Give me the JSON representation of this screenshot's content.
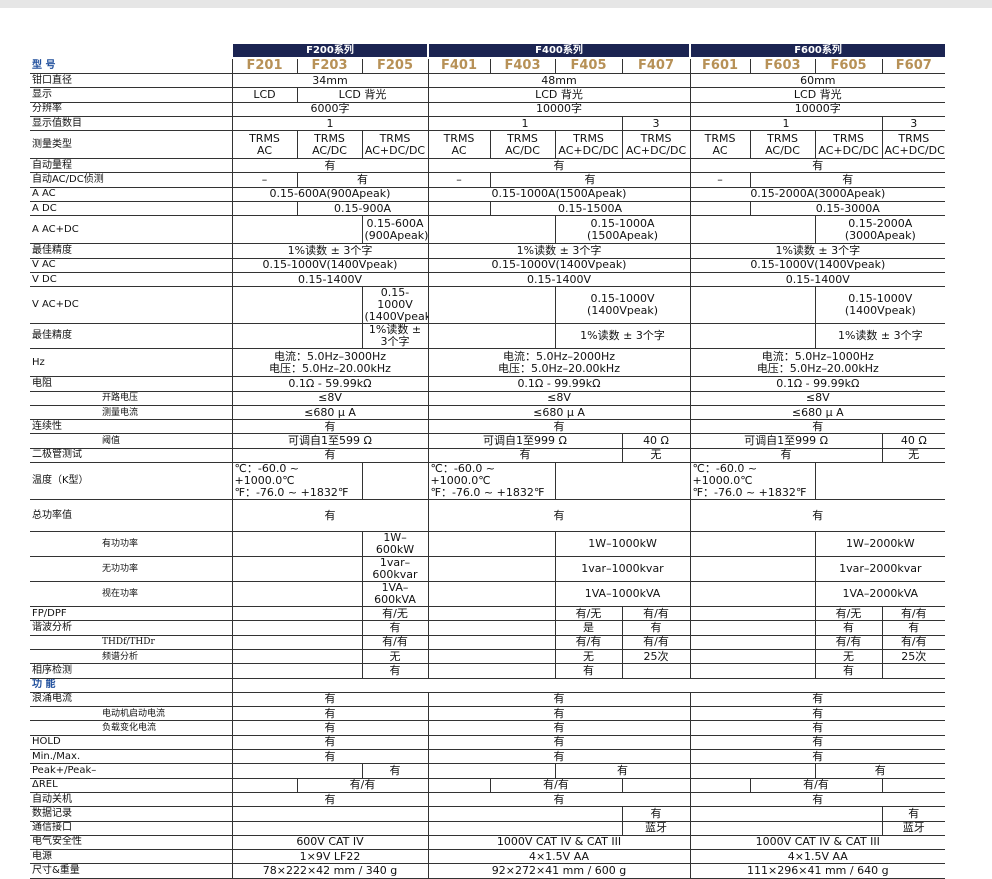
{
  "header": {
    "series": [
      "F200系列",
      "F400系列",
      "F600系列"
    ],
    "model_label": "型 号",
    "models": [
      "F201",
      "F203",
      "F205",
      "F401",
      "F403",
      "F405",
      "F407",
      "F601",
      "F603",
      "F605",
      "F607"
    ]
  },
  "rows": [
    {
      "label": "钳口直径",
      "cells": [
        "34mm",
        "48mm",
        "60mm"
      ]
    },
    {
      "label": "显示",
      "cells": [
        "LCD",
        "LCD 背光",
        "LCD 背光",
        "LCD 背光"
      ]
    },
    {
      "label": "分辨率",
      "cells": [
        "6000字",
        "10000字",
        "10000字"
      ]
    },
    {
      "label": "显示值数目",
      "cells": [
        "1",
        "1",
        "3",
        "1",
        "3"
      ]
    },
    {
      "label": "测量类型",
      "cells": [
        "TRMS\nAC",
        "TRMS\nAC/DC",
        "TRMS\nAC+DC/DC",
        "TRMS\nAC",
        "TRMS\nAC/DC",
        "TRMS\nAC+DC/DC",
        "TRMS\nAC+DC/DC",
        "TRMS\nAC",
        "TRMS\nAC/DC",
        "TRMS\nAC+DC/DC",
        "TRMS\nAC+DC/DC"
      ]
    },
    {
      "label": "自动量程",
      "cells": [
        "有",
        "有",
        "有"
      ]
    },
    {
      "label": "自动AC/DC侦测",
      "cells": [
        "–",
        "有",
        "–",
        "有",
        "–",
        "有"
      ]
    },
    {
      "label": "A AC",
      "cells": [
        "0.15-600A(900Apeak)",
        "0.15-1000A(1500Apeak)",
        "0.15-2000A(3000Apeak)"
      ]
    },
    {
      "label": "A DC",
      "cells": [
        "0.15-900A",
        "0.15-1500A",
        "0.15-3000A"
      ]
    },
    {
      "label": "A AC+DC",
      "cells": [
        "0.15-600A\n(900Apeak)",
        "0.15-1000A\n(1500Apeak)",
        "0.15-2000A\n(3000Apeak)"
      ]
    },
    {
      "label": "最佳精度",
      "cells": [
        "1%读数 ± 3个字",
        "1%读数 ± 3个字",
        "1%读数 ± 3个字"
      ]
    },
    {
      "label": "V AC",
      "cells": [
        "0.15-1000V(1400Vpeak)",
        "0.15-1000V(1400Vpeak)",
        "0.15-1000V(1400Vpeak)"
      ]
    },
    {
      "label": "V DC",
      "cells": [
        "0.15-1400V",
        "0.15-1400V",
        "0.15-1400V"
      ]
    },
    {
      "label": "V AC+DC",
      "cells": [
        "0.15-1000V\n(1400Vpeak)",
        "0.15-1000V\n(1400Vpeak)",
        "0.15-1000V\n(1400Vpeak)"
      ]
    },
    {
      "label": "最佳精度",
      "cells": [
        "1%读数 ± 3个字",
        "1%读数 ± 3个字",
        "1%读数 ± 3个字"
      ]
    },
    {
      "label": "Hz",
      "cells": [
        "电流：5.0Hz–3000Hz\n电压：5.0Hz–20.00kHz",
        "电流：5.0Hz–2000Hz\n电压：5.0Hz–20.00kHz",
        "电流：5.0Hz–1000Hz\n电压：5.0Hz–20.00kHz"
      ]
    },
    {
      "label": "电阻",
      "cells": [
        "0.1Ω - 59.99kΩ",
        "0.1Ω - 99.99kΩ",
        "0.1Ω - 99.99kΩ"
      ]
    },
    {
      "label": "开路电压",
      "cells": [
        "≤8V",
        "≤8V",
        "≤8V"
      ]
    },
    {
      "label": "测量电流",
      "cells": [
        "≤680 μ A",
        "≤680 μ A",
        "≤680 μ A"
      ]
    },
    {
      "label": "连续性",
      "cells": [
        "有",
        "有",
        "有"
      ]
    },
    {
      "label": "阈值",
      "cells": [
        "可调自1至599 Ω",
        "可调自1至999 Ω",
        "40 Ω",
        "可调自1至999 Ω",
        "40 Ω"
      ]
    },
    {
      "label": "二极管测试",
      "cells": [
        "有",
        "有",
        "无",
        "有",
        "无"
      ]
    },
    {
      "label": "温度（K型）",
      "cells": [
        "℃：-60.0 ~ +1000.0℃\n℉：-76.0 ~ +1832℉",
        "℃：-60.0 ~ +1000.0℃\n℉：-76.0 ~ +1832℉",
        "℃：-60.0 ~ +1000.0℃\n℉：-76.0 ~ +1832℉"
      ]
    },
    {
      "label": "总功率值",
      "cells": [
        "有",
        "有",
        "有"
      ]
    },
    {
      "label": "有功功率",
      "cells": [
        "1W–600kW",
        "1W–1000kW",
        "1W–2000kW"
      ]
    },
    {
      "label": "无功功率",
      "cells": [
        "1var–600kvar",
        "1var–1000kvar",
        "1var–2000kvar"
      ]
    },
    {
      "label": "视在功率",
      "cells": [
        "1VA–600kVA",
        "1VA–1000kVA",
        "1VA–2000kVA"
      ]
    },
    {
      "label": "FP/DPF",
      "cells": [
        "有/无",
        "有/无",
        "有/有",
        "有/无",
        "有/有"
      ]
    },
    {
      "label": "谐波分析",
      "cells": [
        "有",
        "是",
        "有",
        "有",
        "有"
      ]
    },
    {
      "label": "THDf/THDr",
      "cells": [
        "有/有",
        "有/有",
        "有/有",
        "有/有",
        "有/有"
      ]
    },
    {
      "label": "频谱分析",
      "cells": [
        "无",
        "无",
        "25次",
        "无",
        "25次"
      ]
    },
    {
      "label": "相序检测",
      "cells": [
        "有",
        "有",
        "有"
      ]
    },
    {
      "label": "功 能",
      "cells": []
    },
    {
      "label": "浪涌电流",
      "cells": [
        "有",
        "有",
        "有"
      ]
    },
    {
      "label": "电动机启动电流",
      "cells": [
        "有",
        "有",
        "有"
      ]
    },
    {
      "label": "负载变化电流",
      "cells": [
        "有",
        "有",
        "有"
      ]
    },
    {
      "label": "HOLD",
      "cells": [
        "有",
        "有",
        "有"
      ]
    },
    {
      "label": "Min./Max.",
      "cells": [
        "有",
        "有",
        "有"
      ]
    },
    {
      "label": "Peak+/Peak–",
      "cells": [
        "有",
        "有",
        "有"
      ]
    },
    {
      "label": "ΔREL",
      "cells": [
        "有/有",
        "有/有",
        "有/有"
      ]
    },
    {
      "label": "自动关机",
      "cells": [
        "有",
        "有",
        "有"
      ]
    },
    {
      "label": "数据记录",
      "cells": [
        "有",
        "有"
      ]
    },
    {
      "label": "通信接口",
      "cells": [
        "蓝牙",
        "蓝牙"
      ]
    },
    {
      "label": "电气安全性",
      "cells": [
        "600V CAT IV",
        "1000V CAT IV & CAT III",
        "1000V CAT IV & CAT III"
      ]
    },
    {
      "label": "电源",
      "cells": [
        "1×9V LF22",
        "4×1.5V AA",
        "4×1.5V AA"
      ]
    },
    {
      "label": "尺寸&重量",
      "cells": [
        "78×222×42 mm / 340 g",
        "92×272×41 mm / 600 g",
        "111×296×41 mm / 640 g"
      ]
    }
  ]
}
